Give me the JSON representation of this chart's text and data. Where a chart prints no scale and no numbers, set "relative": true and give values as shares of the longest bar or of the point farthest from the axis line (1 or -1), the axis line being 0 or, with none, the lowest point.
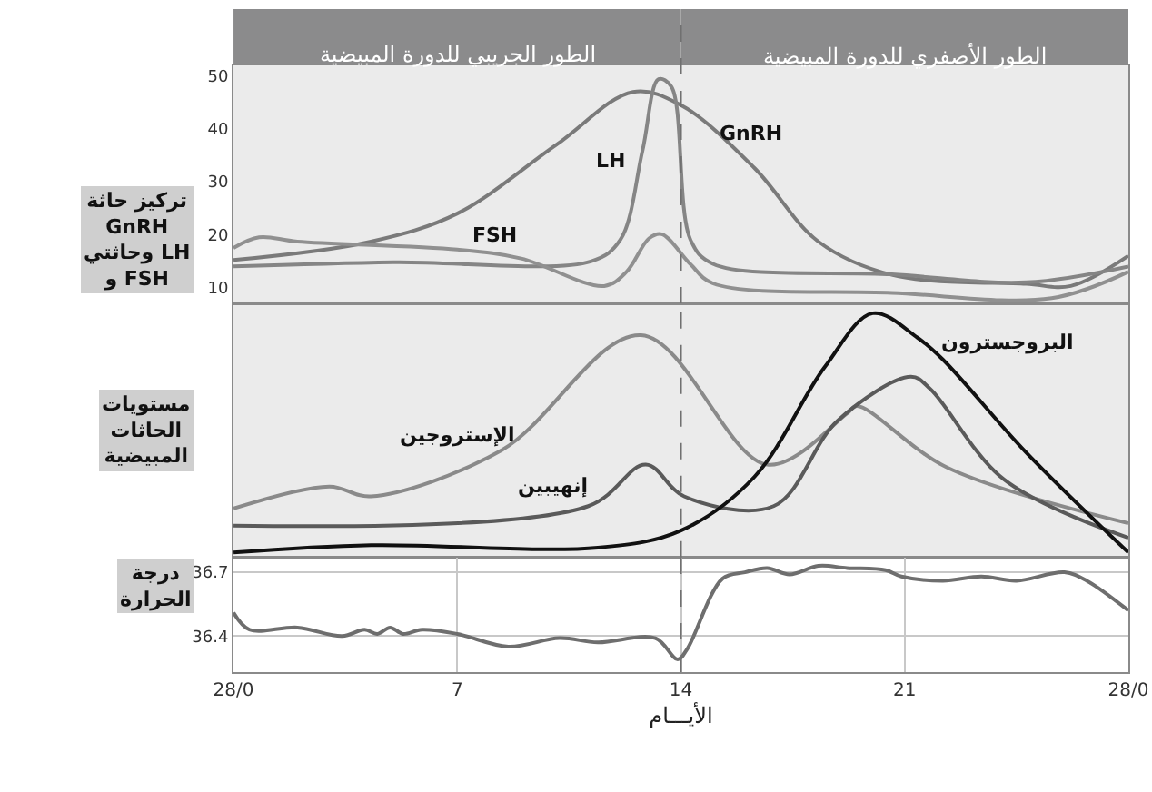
{
  "chart_data": [
    {
      "type": "line",
      "ylabel": "تركيز حاثة GnRH وحاثتي LH و FSH",
      "xlim": [
        0,
        28
      ],
      "ylim": [
        7,
        52
      ],
      "yticks": [
        10,
        20,
        30,
        40,
        50
      ],
      "tick_labels": "y",
      "grid": false,
      "annotations": [
        "الطور الجريبي للدورة المبيضية",
        "الطور الأصفري للدورة المبيضية"
      ],
      "ref_lines": [
        {
          "axis": "x",
          "value": 14,
          "color": "#707070",
          "line_style": "dashed"
        }
      ],
      "series": [
        {
          "name": "GnRH",
          "color": "#7a7a7a",
          "x": [
            0,
            4.3,
            7,
            10.1,
            12.5,
            14,
            16.3,
            18.3,
            20.6,
            24.8,
            26.2,
            28
          ],
          "values": [
            15.2,
            18.7,
            24,
            37,
            47,
            44.5,
            32.6,
            18.7,
            12.4,
            10.7,
            10.3,
            16
          ]
        },
        {
          "name": "LH",
          "color": "#858585",
          "x": [
            0,
            5,
            11.2,
            12.1,
            12.8,
            13.3,
            13.7,
            14.3,
            15,
            20.6,
            24.8,
            28
          ],
          "values": [
            14,
            14.8,
            15,
            19,
            36,
            49.4,
            48,
            19,
            14.5,
            12.5,
            11,
            14
          ]
        },
        {
          "name": "FSH",
          "color": "#909090",
          "x": [
            0,
            0.8,
            2,
            7,
            9,
            11.6,
            12.3,
            13,
            13.4,
            14.3,
            15,
            20.6,
            25.6,
            28
          ],
          "values": [
            17.5,
            19.5,
            18.7,
            17.2,
            15.5,
            10.3,
            13,
            19.3,
            20.1,
            14.4,
            10.8,
            9,
            8,
            13
          ]
        }
      ]
    },
    {
      "type": "line",
      "ylabel": "مستويات الحاثات المبيضية",
      "xlim": [
        0,
        28
      ],
      "relative": true,
      "tick_labels": false,
      "grid": false,
      "ref_lines": [
        {
          "axis": "x",
          "value": 14,
          "color": "#707070",
          "line_style": "dashed"
        }
      ],
      "series": [
        {
          "name": "الإستروجين",
          "color": "#8a8a8a",
          "x": [
            0,
            3,
            4.3,
            8.4,
            12.75,
            16.7,
            19.2,
            19.5,
            22.3,
            28
          ],
          "values": [
            0.2,
            0.29,
            0.25,
            0.44,
            0.91,
            0.38,
            0.59,
            0.62,
            0.37,
            0.14
          ]
        },
        {
          "name": "إنهيبين",
          "color": "#5a5a5a",
          "x": [
            0,
            11.1,
            12.9,
            14.1,
            16.9,
            18.9,
            21.2,
            21.8,
            24.1,
            28
          ],
          "values": [
            0.13,
            0.21,
            0.38,
            0.25,
            0.21,
            0.56,
            0.74,
            0.69,
            0.32,
            0.08
          ]
        },
        {
          "name": "البروجسترون",
          "color": "#111111",
          "x": [
            0,
            4.3,
            11.4,
            14,
            16.3,
            18.5,
            20,
            21.4,
            22.2,
            24.8,
            28
          ],
          "values": [
            0.02,
            0.05,
            0.04,
            0.11,
            0.33,
            0.78,
            1.0,
            0.9,
            0.81,
            0.43,
            0.02
          ]
        }
      ]
    },
    {
      "type": "line",
      "ylabel": "درجة الحرارة",
      "xlabel": "الأيـــام",
      "xlim": [
        0,
        28
      ],
      "ylim": [
        36.23,
        36.77
      ],
      "grid": true,
      "yticks": [
        36.4,
        36.7
      ],
      "xticks": [
        {
          "value": 0,
          "label": "28/0"
        },
        7,
        14,
        21,
        {
          "value": 28,
          "label": "28/0"
        }
      ],
      "ref_lines": [
        {
          "axis": "x",
          "value": 14,
          "color": "#707070",
          "line_style": "dashed"
        }
      ],
      "series": [
        {
          "color": "#6e6e6e",
          "x": [
            0,
            0.5,
            2,
            3.4,
            4.1,
            4.5,
            4.9,
            5.3,
            5.9,
            7,
            8.6,
            10.2,
            11.4,
            13.2,
            13.9,
            14.2,
            15.3,
            16,
            16.7,
            17.4,
            18.3,
            19.2,
            20.4,
            20.9,
            22.2,
            23.4,
            24.5,
            26,
            26.7,
            28
          ],
          "values": [
            36.51,
            36.43,
            36.44,
            36.4,
            36.43,
            36.41,
            36.44,
            36.41,
            36.43,
            36.41,
            36.35,
            36.39,
            36.37,
            36.39,
            36.29,
            36.34,
            36.67,
            36.7,
            36.72,
            36.69,
            36.73,
            36.72,
            36.71,
            36.68,
            36.66,
            36.68,
            36.66,
            36.7,
            36.66,
            36.52
          ]
        }
      ]
    }
  ]
}
